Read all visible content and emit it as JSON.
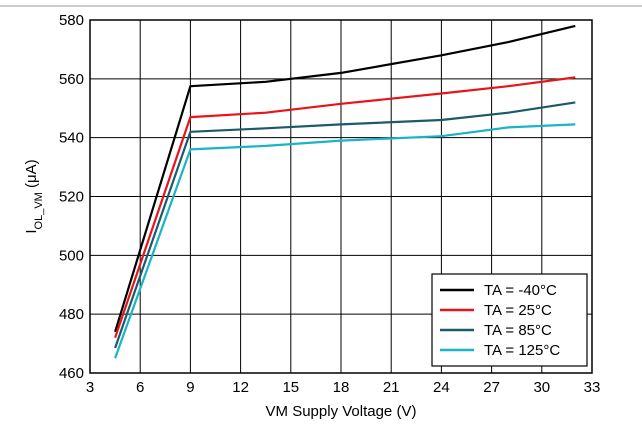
{
  "chart_data": {
    "type": "line",
    "title": "",
    "xlabel": "VM Supply Voltage (V)",
    "ylabel_main": "I",
    "ylabel_sub": "OL_VM",
    "ylabel_unit": " (μA)",
    "xlim": [
      3,
      33
    ],
    "ylim": [
      460,
      580
    ],
    "xticks": [
      3,
      6,
      9,
      12,
      15,
      18,
      21,
      24,
      27,
      30,
      33
    ],
    "yticks": [
      460,
      480,
      500,
      520,
      540,
      560,
      580
    ],
    "grid": true,
    "legend_position": "bottom-right",
    "series": [
      {
        "name": "TA = -40°C",
        "color": "#000000",
        "x": [
          4.5,
          9,
          13.5,
          18,
          24,
          28,
          32
        ],
        "y": [
          474,
          557.5,
          559,
          562,
          568,
          572.5,
          578
        ]
      },
      {
        "name": "TA = 25°C",
        "color": "#e8141b",
        "x": [
          4.5,
          9,
          13.5,
          18,
          24,
          28,
          32
        ],
        "y": [
          472,
          547,
          548.5,
          551.5,
          555,
          557.5,
          560.5
        ]
      },
      {
        "name": "TA = 85°C",
        "color": "#1b5a6a",
        "x": [
          4.5,
          9,
          13.5,
          18,
          24,
          28,
          32
        ],
        "y": [
          468.5,
          542,
          543.2,
          544.5,
          546,
          548.5,
          552
        ]
      },
      {
        "name": "TA = 125°C",
        "color": "#1ab3c8",
        "x": [
          4.5,
          9,
          13.5,
          18,
          24,
          28,
          32
        ],
        "y": [
          465,
          536,
          537.2,
          539,
          540.5,
          543.5,
          544.5
        ]
      }
    ]
  }
}
